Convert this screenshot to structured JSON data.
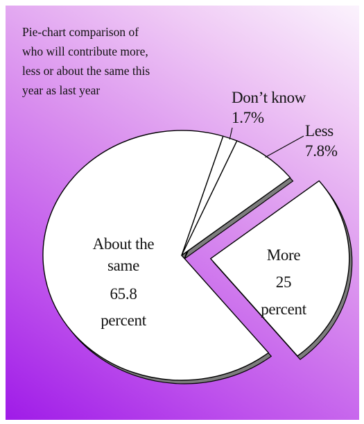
{
  "chart_data": {
    "type": "pie",
    "title_lines": [
      "Pie-chart comparison of",
      "who will contribute more,",
      "less or about the same this",
      "year as last year"
    ],
    "slices": [
      {
        "name": "More",
        "value": 25,
        "label_lines": [
          "More",
          "25",
          "percent"
        ],
        "exploded": true
      },
      {
        "name": "About the same",
        "value": 65.8,
        "label_lines": [
          "About the",
          "same",
          "65.8",
          "percent"
        ],
        "exploded": false
      },
      {
        "name": "Don’t know",
        "value": 1.7,
        "label_lines": [
          "Don’t know",
          "1.7%"
        ],
        "exploded": false
      },
      {
        "name": "Less",
        "value": 7.8,
        "label_lines": [
          "Less",
          "7.8%"
        ],
        "exploded": false
      }
    ],
    "slice_fill": "#ffffff",
    "shadow_color": "#7d7d7d",
    "background_gradient": [
      "#fbf3fd",
      "#d88cee",
      "#9f1be8"
    ]
  }
}
